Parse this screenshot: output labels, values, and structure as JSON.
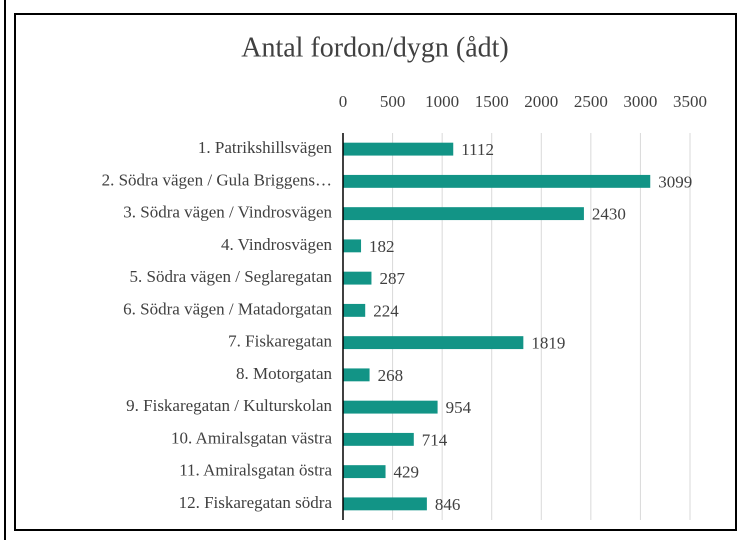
{
  "chart_data": {
    "type": "bar",
    "orientation": "horizontal",
    "title": "Antal fordon/dygn (ådt)",
    "categories": [
      "1. Patrikshillsvägen",
      "2. Södra vägen / Gula Briggens…",
      "3. Södra vägen / Vindrosvägen",
      "4. Vindrosvägen",
      "5. Södra vägen / Seglaregatan",
      "6. Södra vägen / Matadorgatan",
      "7. Fiskaregatan",
      "8. Motorgatan",
      "9. Fiskaregatan / Kulturskolan",
      "10. Amiralsgatan västra",
      "11. Amiralsgatan östra",
      "12. Fiskaregatan södra"
    ],
    "values": [
      1112,
      3099,
      2430,
      182,
      287,
      224,
      1819,
      268,
      954,
      714,
      429,
      846
    ],
    "color": "#129486",
    "xlim": [
      0,
      3500
    ],
    "xticks": [
      0,
      500,
      1000,
      1500,
      2000,
      2500,
      3000,
      3500
    ],
    "grid": true
  }
}
